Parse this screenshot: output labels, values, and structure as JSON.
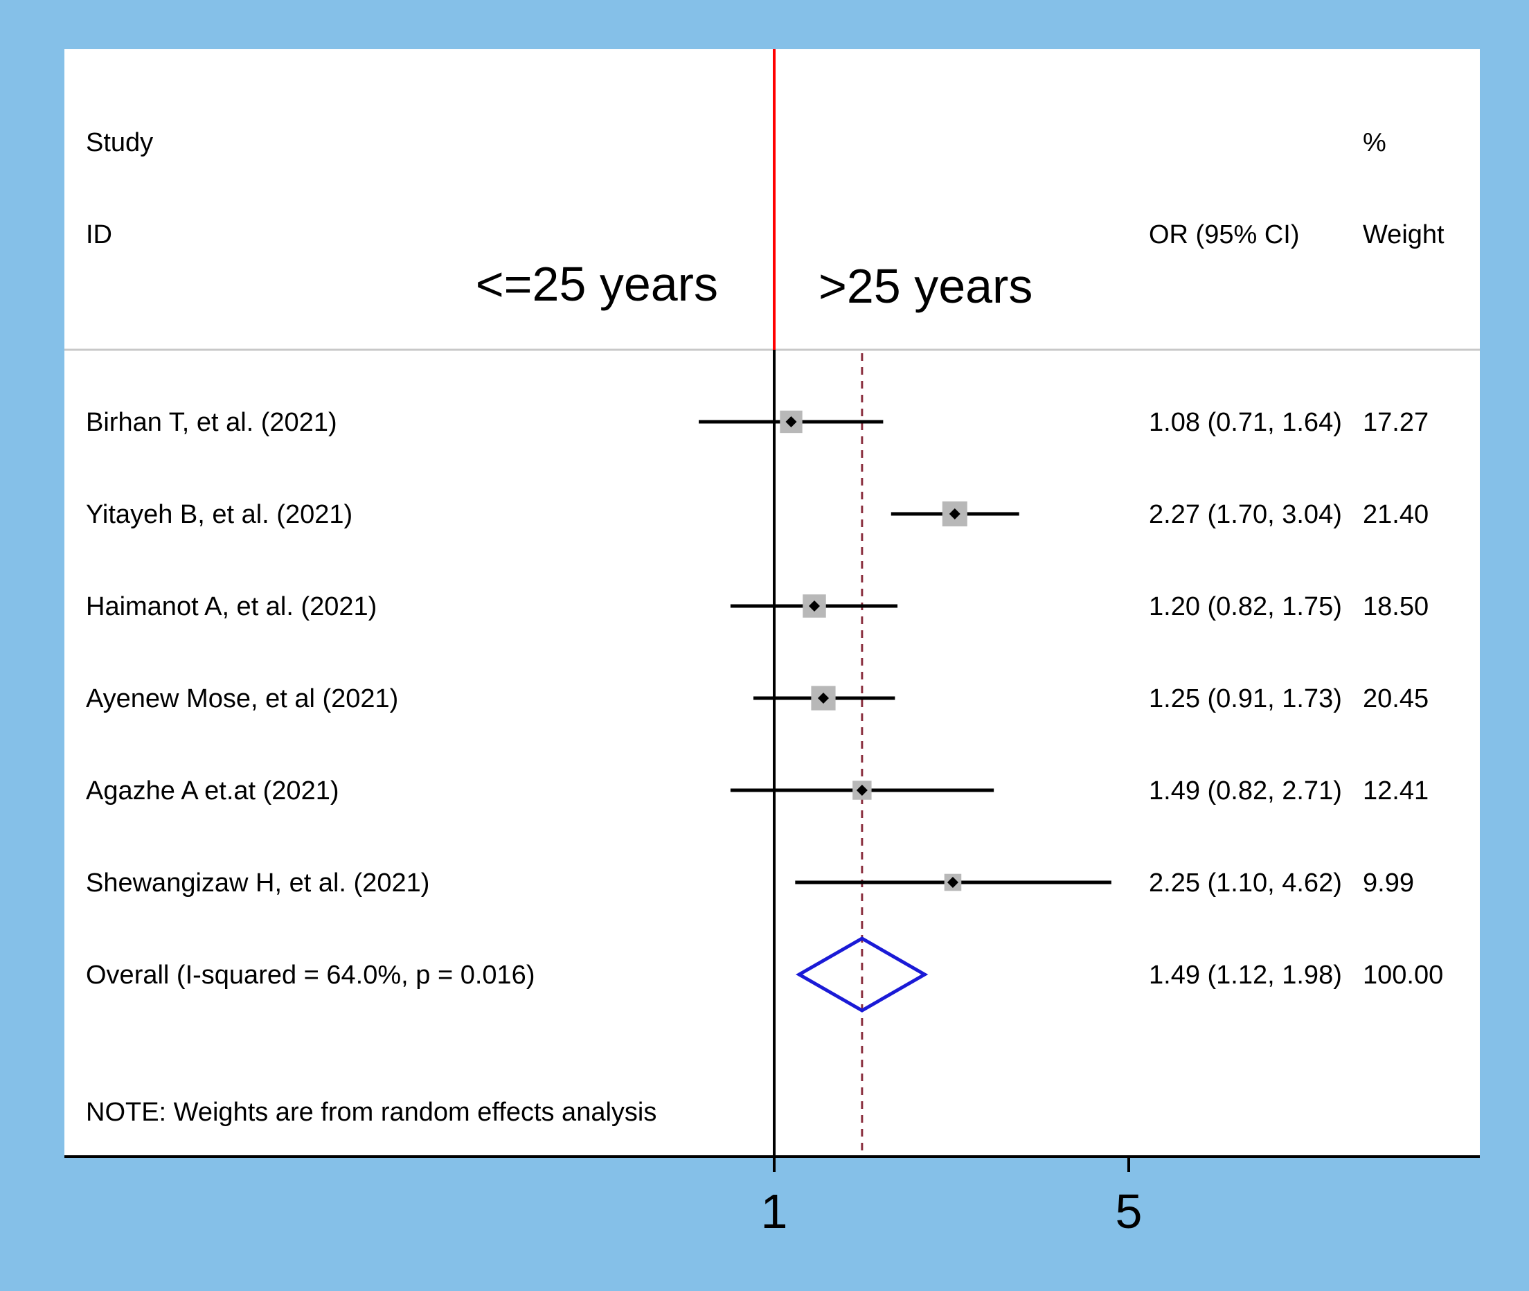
{
  "colors": {
    "frame": "#85C0E8",
    "panel": "#ffffff",
    "null_line": "#ff0000",
    "overall_line": "#8b2f3f",
    "ci_line": "#000000",
    "weight_box": "#b8b8b8",
    "diamond": "#1a1ad6",
    "separator": "#c8c8c8"
  },
  "headers": {
    "study": "Study",
    "id": "ID",
    "percent": "%",
    "or_ci": "OR (95% CI)",
    "weight": "Weight",
    "left_region": "<=25 years",
    "right_region": ">25 years"
  },
  "note": "NOTE: Weights are from random effects analysis",
  "chart_data": {
    "type": "forest",
    "effect_measure": "OR",
    "x_scale": "log",
    "null_value": 1,
    "xticks": [
      1,
      5
    ],
    "xtick_labels": [
      "1",
      "5"
    ],
    "studies": [
      {
        "label": "Birhan T, et al. (2021)",
        "or": 1.08,
        "lo": 0.71,
        "hi": 1.64,
        "weight": 17.27,
        "ci_text": "1.08 (0.71, 1.64)",
        "weight_text": "17.27"
      },
      {
        "label": "Yitayeh B, et al. (2021)",
        "or": 2.27,
        "lo": 1.7,
        "hi": 3.04,
        "weight": 21.4,
        "ci_text": "2.27 (1.70, 3.04)",
        "weight_text": "21.40"
      },
      {
        "label": "Haimanot A, et al. (2021)",
        "or": 1.2,
        "lo": 0.82,
        "hi": 1.75,
        "weight": 18.5,
        "ci_text": "1.20 (0.82, 1.75)",
        "weight_text": "18.50"
      },
      {
        "label": "Ayenew Mose, et al (2021)",
        "or": 1.25,
        "lo": 0.91,
        "hi": 1.73,
        "weight": 20.45,
        "ci_text": "1.25 (0.91, 1.73)",
        "weight_text": "20.45"
      },
      {
        "label": "Agazhe A et.at (2021)",
        "or": 1.49,
        "lo": 0.82,
        "hi": 2.71,
        "weight": 12.41,
        "ci_text": "1.49 (0.82, 2.71)",
        "weight_text": "12.41"
      },
      {
        "label": "Shewangizaw H, et al. (2021)",
        "or": 2.25,
        "lo": 1.1,
        "hi": 4.62,
        "weight": 9.99,
        "ci_text": "2.25 (1.10, 4.62)",
        "weight_text": "9.99"
      }
    ],
    "overall": {
      "label": "Overall  (I-squared = 64.0%, p = 0.016)",
      "or": 1.49,
      "lo": 1.12,
      "hi": 1.98,
      "weight": 100.0,
      "ci_text": "1.49 (1.12, 1.98)",
      "weight_text": "100.00"
    }
  }
}
